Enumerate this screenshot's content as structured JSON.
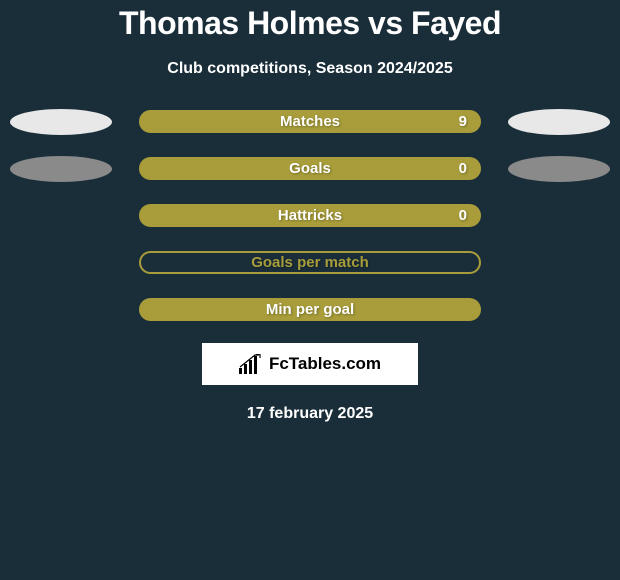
{
  "title": "Thomas Holmes vs Fayed",
  "subtitle": "Club competitions, Season 2024/2025",
  "colors": {
    "background": "#1a2e3a",
    "ellipse_white": "#e8e8e8",
    "ellipse_gray": "#8a8a8a",
    "bar_olive": "#a89d3a",
    "bar_olive_outline": "#a89d3a",
    "text_white": "#ffffff",
    "text_shadow": "rgba(0,0,0,0.3)"
  },
  "stats": [
    {
      "label": "Matches",
      "value": "9",
      "bar_fill": "#a89d3a",
      "bar_border": "#a89d3a",
      "label_color": "#ffffff",
      "value_color": "#ffffff",
      "show_value": true,
      "left_ellipse": "#e8e8e8",
      "right_ellipse": "#e8e8e8"
    },
    {
      "label": "Goals",
      "value": "0",
      "bar_fill": "#a89d3a",
      "bar_border": "#a89d3a",
      "label_color": "#ffffff",
      "value_color": "#ffffff",
      "show_value": true,
      "left_ellipse": "#8a8a8a",
      "right_ellipse": "#8a8a8a"
    },
    {
      "label": "Hattricks",
      "value": "0",
      "bar_fill": "#a89d3a",
      "bar_border": "#a89d3a",
      "label_color": "#ffffff",
      "value_color": "#ffffff",
      "show_value": true,
      "left_ellipse": null,
      "right_ellipse": null
    },
    {
      "label": "Goals per match",
      "value": "",
      "bar_fill": "transparent",
      "bar_border": "#a89d3a",
      "label_color": "#a89d3a",
      "value_color": "#a89d3a",
      "show_value": false,
      "left_ellipse": null,
      "right_ellipse": null
    },
    {
      "label": "Min per goal",
      "value": "",
      "bar_fill": "#a89d3a",
      "bar_border": "#a89d3a",
      "label_color": "#ffffff",
      "value_color": "#ffffff",
      "show_value": false,
      "left_ellipse": null,
      "right_ellipse": null
    }
  ],
  "logo": {
    "text": "FcTables.com",
    "icon": "chart-bars"
  },
  "date": "17 february 2025"
}
